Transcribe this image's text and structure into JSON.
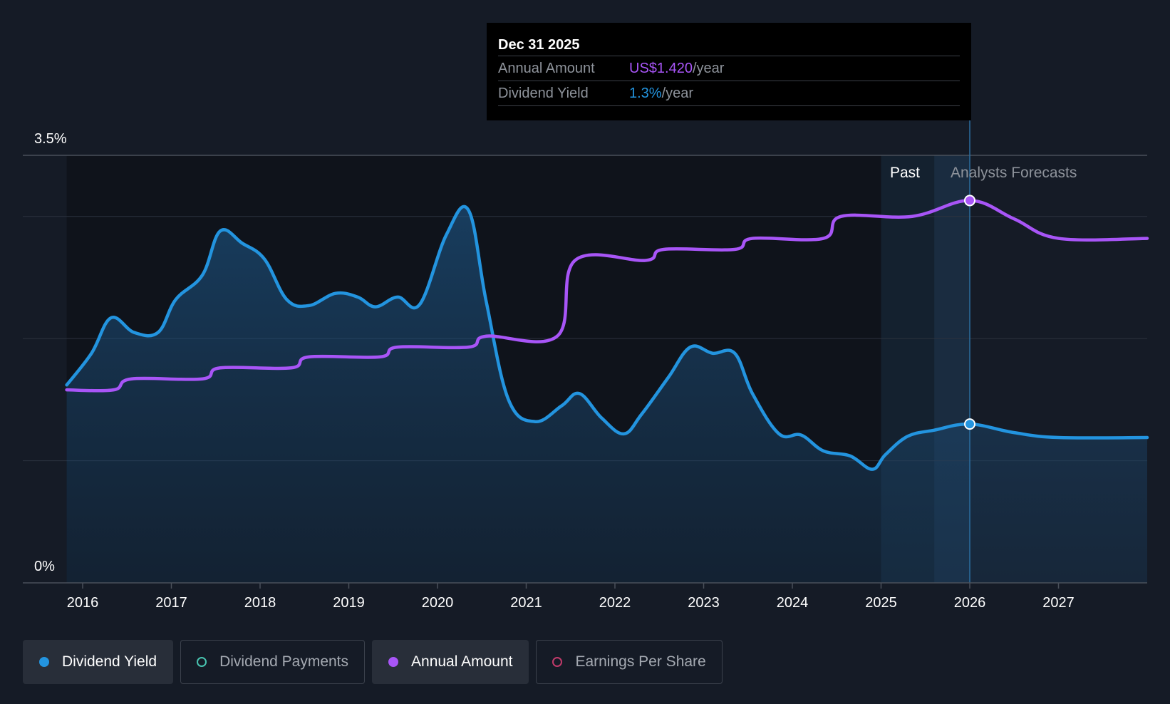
{
  "tooltip": {
    "date": "Dec 31 2025",
    "annual_label": "Annual Amount",
    "annual_value": "US$1.420",
    "annual_unit": "/year",
    "yield_label": "Dividend Yield",
    "yield_value": "1.3%",
    "yield_unit": "/year"
  },
  "regions": {
    "past_label": "Past",
    "forecast_label": "Analysts Forecasts"
  },
  "legend": [
    {
      "label": "Dividend Yield",
      "color": "#2394df",
      "active": true,
      "filled": true
    },
    {
      "label": "Dividend Payments",
      "color": "#48c4b0",
      "active": false,
      "filled": false
    },
    {
      "label": "Annual Amount",
      "color": "#a855f7",
      "active": true,
      "filled": true
    },
    {
      "label": "Earnings Per Share",
      "color": "#c03a6a",
      "active": false,
      "filled": false
    }
  ],
  "chart_data": {
    "type": "line",
    "ylim": [
      0,
      3.5
    ],
    "y_tick_labels": [
      "0%",
      "3.5%"
    ],
    "x_ticks": [
      "2016",
      "2017",
      "2018",
      "2019",
      "2020",
      "2021",
      "2022",
      "2023",
      "2024",
      "2025",
      "2026",
      "2027"
    ],
    "x_range": [
      2015.5,
      2028.0
    ],
    "grid": true,
    "highlight_x": 2026.0,
    "past_start": 2025.0,
    "series": [
      {
        "name": "Dividend Yield",
        "color": "#2394df",
        "area": true,
        "points": [
          [
            2015.82,
            1.62
          ],
          [
            2016.1,
            1.88
          ],
          [
            2016.32,
            2.17
          ],
          [
            2016.58,
            2.05
          ],
          [
            2016.85,
            2.05
          ],
          [
            2017.05,
            2.32
          ],
          [
            2017.35,
            2.52
          ],
          [
            2017.55,
            2.88
          ],
          [
            2017.8,
            2.78
          ],
          [
            2018.05,
            2.65
          ],
          [
            2018.3,
            2.32
          ],
          [
            2018.55,
            2.27
          ],
          [
            2018.85,
            2.37
          ],
          [
            2019.1,
            2.34
          ],
          [
            2019.3,
            2.26
          ],
          [
            2019.55,
            2.34
          ],
          [
            2019.8,
            2.28
          ],
          [
            2020.1,
            2.85
          ],
          [
            2020.35,
            3.05
          ],
          [
            2020.55,
            2.3
          ],
          [
            2020.8,
            1.5
          ],
          [
            2021.1,
            1.32
          ],
          [
            2021.4,
            1.45
          ],
          [
            2021.6,
            1.55
          ],
          [
            2021.85,
            1.35
          ],
          [
            2022.1,
            1.22
          ],
          [
            2022.3,
            1.38
          ],
          [
            2022.6,
            1.68
          ],
          [
            2022.85,
            1.93
          ],
          [
            2023.1,
            1.88
          ],
          [
            2023.35,
            1.88
          ],
          [
            2023.55,
            1.55
          ],
          [
            2023.85,
            1.22
          ],
          [
            2024.1,
            1.21
          ],
          [
            2024.35,
            1.08
          ],
          [
            2024.65,
            1.04
          ],
          [
            2024.9,
            0.93
          ],
          [
            2025.05,
            1.05
          ],
          [
            2025.3,
            1.2
          ],
          [
            2025.6,
            1.25
          ],
          [
            2026.0,
            1.3
          ],
          [
            2026.5,
            1.23
          ],
          [
            2027.0,
            1.19
          ],
          [
            2028.0,
            1.19
          ]
        ]
      },
      {
        "name": "Annual Amount",
        "color": "#a855f7",
        "area": false,
        "points": [
          [
            2015.82,
            1.58
          ],
          [
            2016.35,
            1.58
          ],
          [
            2016.55,
            1.67
          ],
          [
            2017.35,
            1.67
          ],
          [
            2017.55,
            1.76
          ],
          [
            2018.35,
            1.76
          ],
          [
            2018.55,
            1.85
          ],
          [
            2019.35,
            1.85
          ],
          [
            2019.55,
            1.93
          ],
          [
            2020.35,
            1.93
          ],
          [
            2020.55,
            2.02
          ],
          [
            2021.35,
            2.02
          ],
          [
            2021.55,
            2.64
          ],
          [
            2022.35,
            2.64
          ],
          [
            2022.55,
            2.73
          ],
          [
            2023.35,
            2.73
          ],
          [
            2023.55,
            2.82
          ],
          [
            2024.35,
            2.82
          ],
          [
            2024.55,
            3.0
          ],
          [
            2025.35,
            3.0
          ],
          [
            2026.0,
            3.13
          ],
          [
            2026.5,
            2.98
          ],
          [
            2027.0,
            2.82
          ],
          [
            2028.0,
            2.82
          ]
        ]
      }
    ]
  }
}
